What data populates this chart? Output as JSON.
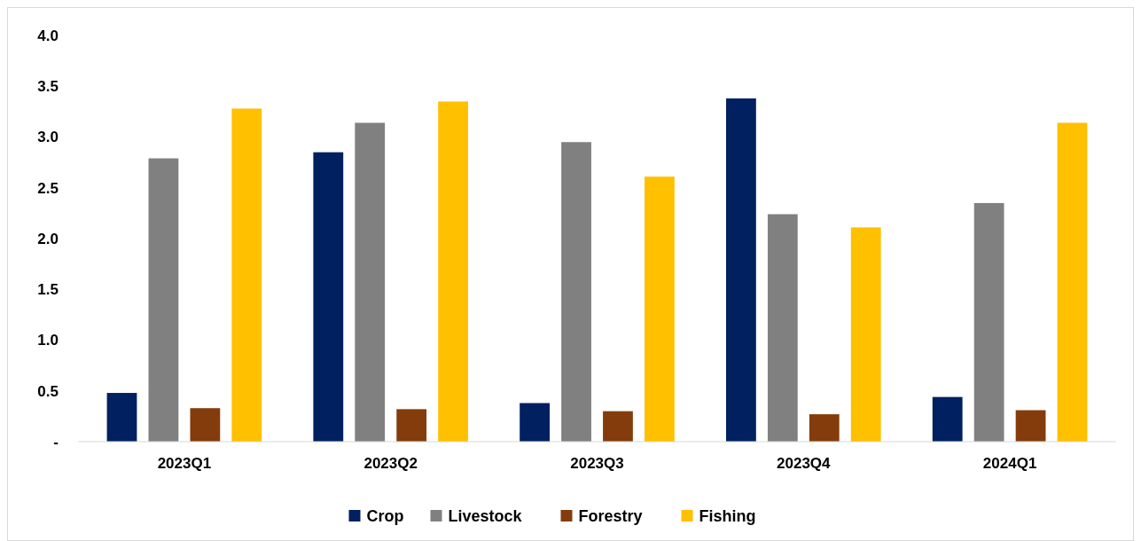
{
  "chart_data": {
    "type": "bar",
    "categories": [
      "2023Q1",
      "2023Q2",
      "2023Q3",
      "2023Q4",
      "2024Q1"
    ],
    "series": [
      {
        "name": "Crop",
        "color": "#002060",
        "values": [
          0.48,
          2.85,
          0.38,
          3.38,
          0.44
        ]
      },
      {
        "name": "Livestock",
        "color": "#808080",
        "values": [
          2.79,
          3.14,
          2.95,
          2.24,
          2.35
        ]
      },
      {
        "name": "Forestry",
        "color": "#843c0c",
        "values": [
          0.33,
          0.32,
          0.3,
          0.27,
          0.31
        ]
      },
      {
        "name": "Fishing",
        "color": "#ffc000",
        "values": [
          3.28,
          3.35,
          2.61,
          2.11,
          3.14
        ]
      }
    ],
    "ylim": [
      0,
      4
    ],
    "yticks": [
      {
        "value": 0,
        "label": "-"
      },
      {
        "value": 0.5,
        "label": "0.5"
      },
      {
        "value": 1,
        "label": "1.0"
      },
      {
        "value": 1.5,
        "label": "1.5"
      },
      {
        "value": 2,
        "label": "2.0"
      },
      {
        "value": 2.5,
        "label": "2.5"
      },
      {
        "value": 3,
        "label": "3.0"
      },
      {
        "value": 3.5,
        "label": "3.5"
      },
      {
        "value": 4,
        "label": "4.0"
      }
    ],
    "grid": false,
    "legend": "bottom"
  }
}
